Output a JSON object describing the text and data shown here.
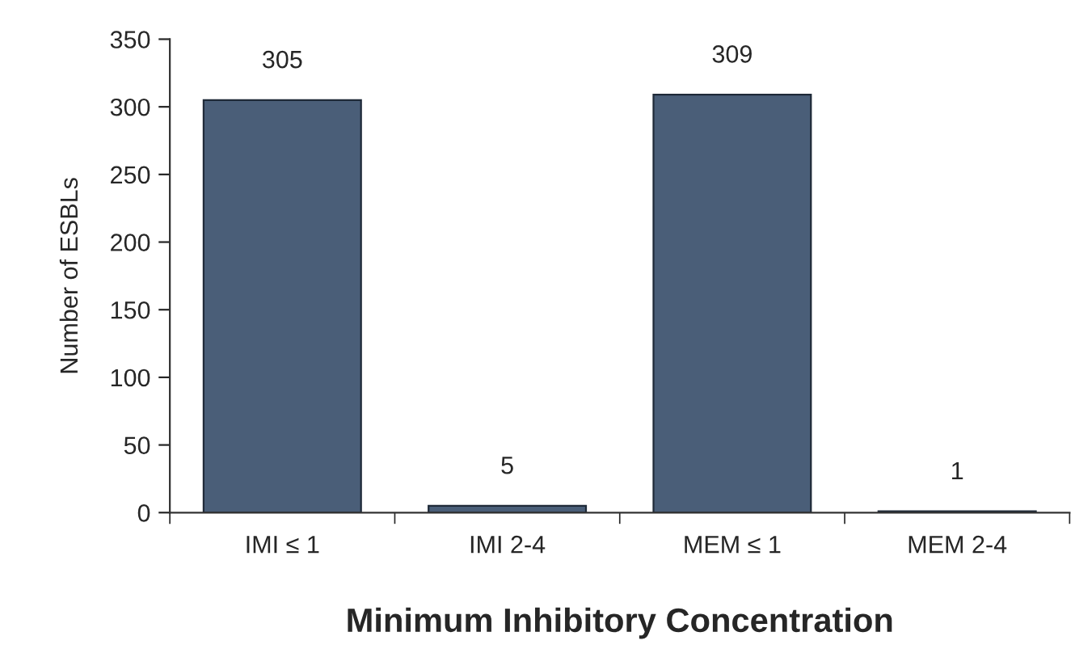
{
  "chart_data": {
    "type": "bar",
    "xlabel": "Minimum Inhibitory Concentration",
    "ylabel": "Number of ESBLs",
    "categories": [
      "IMI ≤ 1",
      "IMI 2-4",
      "MEM ≤ 1",
      "MEM 2-4"
    ],
    "values": [
      305,
      5,
      309,
      1
    ],
    "color": "#4a5e78",
    "ylim": [
      0,
      350
    ],
    "yticks": [
      0,
      50,
      100,
      150,
      200,
      250,
      300,
      350
    ],
    "grid": false,
    "legend": false,
    "data_labels": true
  }
}
